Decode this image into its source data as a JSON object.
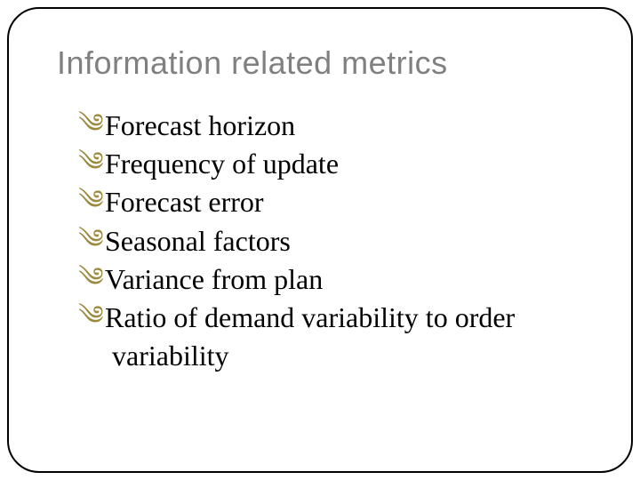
{
  "slide": {
    "title": "Information related metrics",
    "title_color": "#808080",
    "title_fontsize": 36,
    "bullet_glyph": "༄",
    "bullet_color": "#9c8a3f",
    "body_color": "#000000",
    "body_fontsize": 32,
    "body_font": "Times New Roman",
    "frame_border_color": "#000000",
    "frame_border_radius": 36,
    "background_color": "#ffffff",
    "items": [
      {
        "text": "Forecast horizon"
      },
      {
        "text": "Frequency of update"
      },
      {
        "text": "Forecast error"
      },
      {
        "text": "Seasonal factors"
      },
      {
        "text": "Variance from plan"
      },
      {
        "text": "Ratio of demand variability to order",
        "continuation": "variability"
      }
    ]
  }
}
